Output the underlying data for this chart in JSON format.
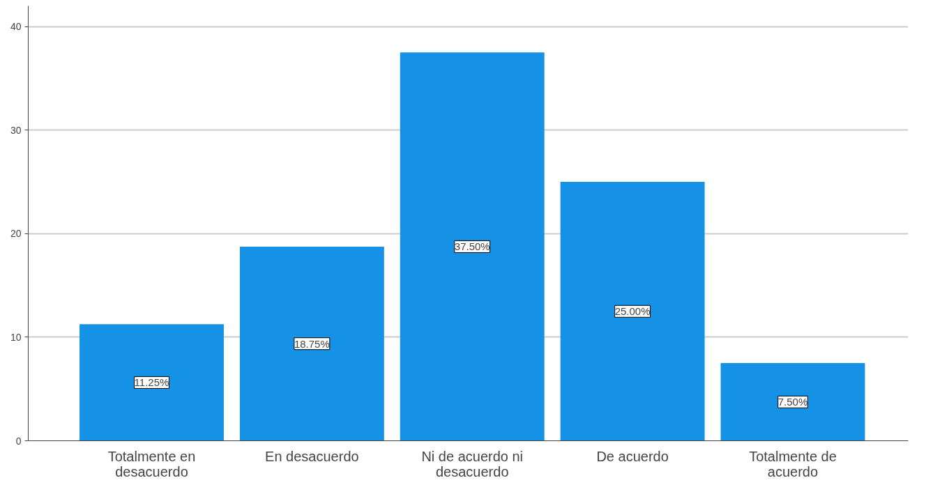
{
  "chart_data": {
    "type": "bar",
    "categories": [
      "Totalmente en desacuerdo",
      "En desacuerdo",
      "Ni de acuerdo ni desacuerdo",
      "De acuerdo",
      "Totalmente de acuerdo"
    ],
    "values": [
      11.25,
      18.75,
      37.5,
      25,
      7.5
    ],
    "value_labels": [
      "11.25%",
      "18.75%",
      "37.50%",
      "25.00%",
      "7.50%"
    ],
    "color": "#1591e6",
    "ylim": [
      0,
      42
    ],
    "yticks": [
      0,
      10,
      20,
      30,
      40
    ],
    "grid": "y"
  }
}
